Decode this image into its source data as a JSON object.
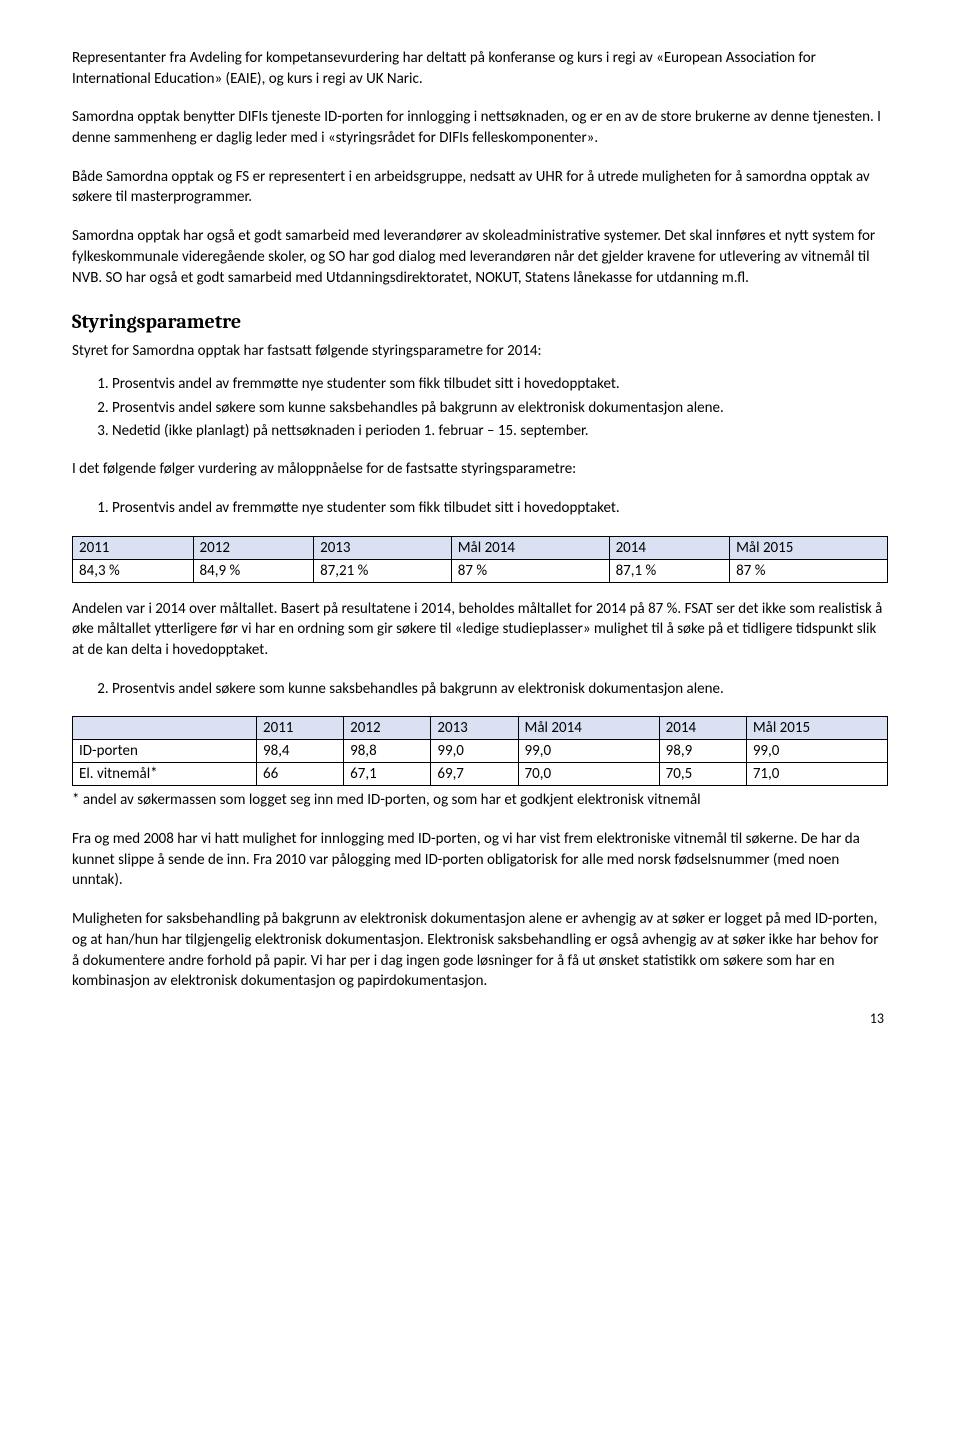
{
  "paragraphs": {
    "p1": "Representanter fra Avdeling for kompetansevurdering har deltatt på konferanse og kurs i regi av «European Association for International Education» (EAIE), og kurs i regi av UK Naric.",
    "p2": "Samordna opptak benytter DIFIs tjeneste ID-porten for innlogging i nettsøknaden, og er en av de store brukerne av denne tjenesten. I denne sammenheng er daglig leder med i «styringsrådet for DIFIs felleskomponenter».",
    "p3": "Både Samordna opptak og FS er representert i en arbeidsgruppe, nedsatt av UHR for å utrede muligheten for å samordna opptak av søkere til masterprogrammer.",
    "p4": "Samordna opptak har også et godt samarbeid med leverandører av skoleadministrative systemer. Det skal innføres et nytt system for fylkeskommunale videregående skoler, og SO har god dialog med leverandøren når det gjelder kravene for utlevering av vitnemål til NVB. SO har også et godt samarbeid med Utdanningsdirektoratet, NOKUT, Statens lånekasse for utdanning m.fl.",
    "p5": "Andelen var i 2014 over måltallet. Basert på resultatene i 2014, beholdes måltallet for 2014 på 87 %. FSAT ser det ikke som realistisk å øke måltallet ytterligere før vi har en ordning som gir søkere til «ledige studieplasser» mulighet til å søke på et tidligere tidspunkt slik at de kan delta i hovedopptaket.",
    "p6": "* andel av søkermassen som logget seg inn med ID-porten, og som har et godkjent elektronisk vitnemål",
    "p7": "Fra og med 2008 har vi hatt mulighet for innlogging med ID-porten, og vi har vist frem elektroniske vitnemål til søkerne. De har da kunnet slippe å sende de inn. Fra 2010 var pålogging med ID-porten obligatorisk for alle med norsk fødselsnummer (med noen unntak).",
    "p8": "Muligheten for saksbehandling på bakgrunn av elektronisk dokumentasjon alene er avhengig av at søker er logget på med ID-porten, og at han/hun har tilgjengelig elektronisk dokumentasjon. Elektronisk saksbehandling er også avhengig av at søker ikke har behov for å dokumentere andre forhold på papir. Vi har per i dag ingen gode løsninger for å få ut ønsket statistikk om søkere som har en kombinasjon av elektronisk dokumentasjon og papirdokumentasjon."
  },
  "section": {
    "title": "Styringsparametre",
    "intro": "Styret for Samordna opptak har fastsatt følgende styringsparametre for 2014:"
  },
  "list1": [
    "Prosentvis andel av fremmøtte nye studenter som fikk tilbudet sitt i hovedopptaket.",
    "Prosentvis andel søkere som kunne saksbehandles på bakgrunn av elektronisk dokumentasjon alene.",
    "Nedetid (ikke planlagt) på nettsøknaden i perioden 1. februar – 15. september."
  ],
  "followup": "I det følgende følger vurdering av måloppnåelse for de fastsatte styringsparametre:",
  "list2": [
    "Prosentvis andel av fremmøtte nye studenter som fikk tilbudet sitt i hovedopptaket."
  ],
  "table1": {
    "type": "table",
    "header_bg": "#d9e1f2",
    "border_color": "#000000",
    "columns": [
      "2011",
      "2012",
      "2013",
      "Mål 2014",
      "2014",
      "Mål 2015"
    ],
    "rows": [
      [
        "84,3 %",
        "84,9 %",
        "87,21 %",
        "87 %",
        "87,1 %",
        "87 %"
      ]
    ]
  },
  "list3": [
    "Prosentvis andel søkere som kunne saksbehandles på bakgrunn av elektronisk dokumentasjon alene."
  ],
  "table2": {
    "type": "table",
    "header_bg": "#d9e1f2",
    "border_color": "#000000",
    "columns": [
      "",
      "2011",
      "2012",
      "2013",
      "Mål 2014",
      "2014",
      "Mål 2015"
    ],
    "rows": [
      [
        "ID-porten",
        "98,4",
        "98,8",
        "99,0",
        "99,0",
        "98,9",
        "99,0"
      ],
      [
        "El. vitnemål*",
        "66",
        "67,1",
        "69,7",
        "70,0",
        "70,5",
        "71,0"
      ]
    ]
  },
  "colors": {
    "text": "#000000",
    "background": "#ffffff",
    "table_header_bg": "#d9e1f2"
  },
  "typography": {
    "body_font": "Calibri",
    "heading_font": "Cambria",
    "body_size_pt": 11,
    "heading_size_pt": 15
  },
  "page_number": "13"
}
